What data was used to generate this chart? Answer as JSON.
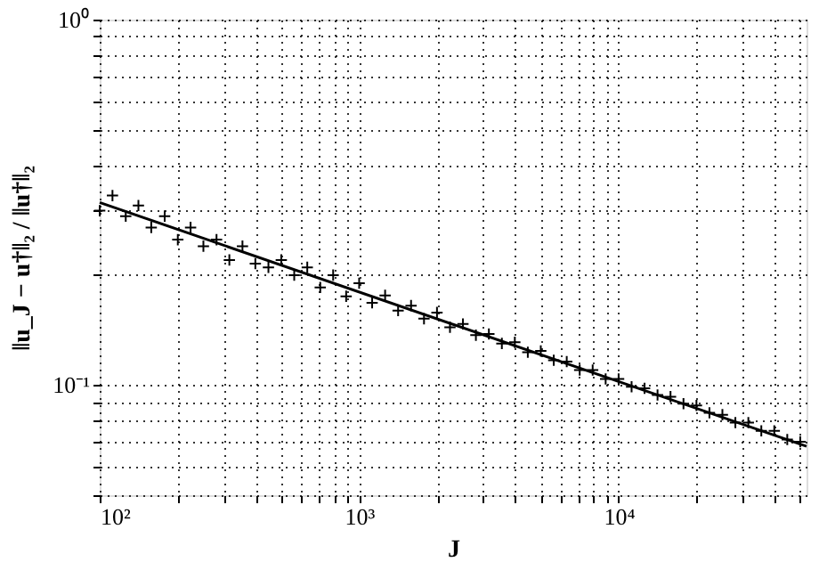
{
  "chart_data": {
    "type": "scatter",
    "xlabel": "J",
    "ylabel": "‖u_J − u†‖₂ / ‖u†‖₂",
    "log": "xy",
    "grid": true,
    "line_style": "dotted",
    "xlim": [
      100,
      53000
    ],
    "ylim": [
      0.05,
      1
    ],
    "xticks": [
      {
        "value": 100,
        "label": "10²"
      },
      {
        "value": 200,
        "label": null
      },
      {
        "value": 300,
        "label": null
      },
      {
        "value": 400,
        "label": null
      },
      {
        "value": 500,
        "label": null
      },
      {
        "value": 600,
        "label": null
      },
      {
        "value": 700,
        "label": null
      },
      {
        "value": 800,
        "label": null
      },
      {
        "value": 900,
        "label": null
      },
      {
        "value": 1000,
        "label": "10³"
      },
      {
        "value": 2000,
        "label": null
      },
      {
        "value": 3000,
        "label": null
      },
      {
        "value": 4000,
        "label": null
      },
      {
        "value": 5000,
        "label": null
      },
      {
        "value": 6000,
        "label": null
      },
      {
        "value": 7000,
        "label": null
      },
      {
        "value": 8000,
        "label": null
      },
      {
        "value": 9000,
        "label": null
      },
      {
        "value": 10000,
        "label": "10⁴"
      },
      {
        "value": 20000,
        "label": null
      },
      {
        "value": 30000,
        "label": null
      },
      {
        "value": 40000,
        "label": null
      },
      {
        "value": 50000,
        "label": null
      }
    ],
    "yticks": [
      {
        "value": 0.05,
        "label": null
      },
      {
        "value": 0.06,
        "label": null
      },
      {
        "value": 0.07,
        "label": null
      },
      {
        "value": 0.08,
        "label": null
      },
      {
        "value": 0.09,
        "label": null
      },
      {
        "value": 0.1,
        "label": "10⁻¹"
      },
      {
        "value": 0.2,
        "label": null
      },
      {
        "value": 0.3,
        "label": null
      },
      {
        "value": 0.4,
        "label": null
      },
      {
        "value": 0.5,
        "label": null
      },
      {
        "value": 0.6,
        "label": null
      },
      {
        "value": 0.7,
        "label": null
      },
      {
        "value": 0.8,
        "label": null
      },
      {
        "value": 0.9,
        "label": null
      },
      {
        "value": 1,
        "label": "10⁰"
      }
    ],
    "series": [
      {
        "marker": "cross",
        "color": "#000000",
        "x": [
          100,
          112,
          126,
          141,
          158,
          178,
          200,
          224,
          251,
          282,
          316,
          355,
          398,
          447,
          501,
          562,
          631,
          708,
          794,
          891,
          1000,
          1122,
          1259,
          1413,
          1585,
          1778,
          1995,
          2239,
          2512,
          2818,
          3162,
          3548,
          3981,
          4467,
          5012,
          5623,
          6310,
          7079,
          7943,
          8913,
          10000,
          11220,
          12589,
          14125,
          15849,
          17783,
          19953,
          22387,
          25119,
          28184,
          31623,
          35481,
          39811,
          44668,
          50119
        ],
        "values": [
          0.3,
          0.33,
          0.29,
          0.31,
          0.27,
          0.29,
          0.25,
          0.27,
          0.24,
          0.25,
          0.22,
          0.24,
          0.215,
          0.21,
          0.22,
          0.2,
          0.21,
          0.185,
          0.2,
          0.175,
          0.19,
          0.168,
          0.176,
          0.16,
          0.165,
          0.152,
          0.158,
          0.144,
          0.147,
          0.137,
          0.138,
          0.13,
          0.131,
          0.123,
          0.124,
          0.117,
          0.116,
          0.11,
          0.11,
          0.104,
          0.104,
          0.099,
          0.098,
          0.094,
          0.093,
          0.089,
          0.088,
          0.084,
          0.083,
          0.079,
          0.079,
          0.075,
          0.075,
          0.071,
          0.07
        ]
      },
      {
        "type": "line",
        "marker": "none",
        "line_style": "solid",
        "color": "#000000",
        "x": [
          100,
          53000
        ],
        "values": [
          0.316,
          0.068
        ]
      }
    ]
  }
}
